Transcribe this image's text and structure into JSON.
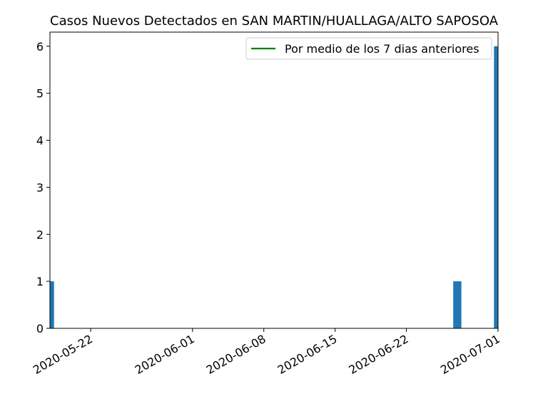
{
  "chart_data": {
    "type": "bar",
    "title": "Casos Nuevos Detectados en SAN MARTIN/HUALLAGA/ALTO SAPOSOA",
    "xlabel": "",
    "ylabel": "",
    "x_axis_type": "date",
    "xlim": [
      "2020-05-18",
      "2020-07-01"
    ],
    "ylim": [
      0,
      6.3
    ],
    "x_ticks": [
      "2020-05-22",
      "2020-06-01",
      "2020-06-08",
      "2020-06-15",
      "2020-06-22",
      "2020-07-01"
    ],
    "y_ticks": [
      0,
      1,
      2,
      3,
      4,
      5,
      6
    ],
    "bars": [
      {
        "date": "2020-05-18",
        "value": 1
      },
      {
        "date": "2020-06-27",
        "value": 1
      },
      {
        "date": "2020-07-01",
        "value": 6
      }
    ],
    "series": [
      {
        "name": "Por medio de los 7 dias anteriores",
        "type": "line",
        "color": "#008000",
        "values": []
      }
    ],
    "bar_color": "#1f77b4",
    "legend": {
      "position": "top-right",
      "entries": [
        "Por medio de los 7 dias anteriores"
      ]
    },
    "grid": false
  }
}
